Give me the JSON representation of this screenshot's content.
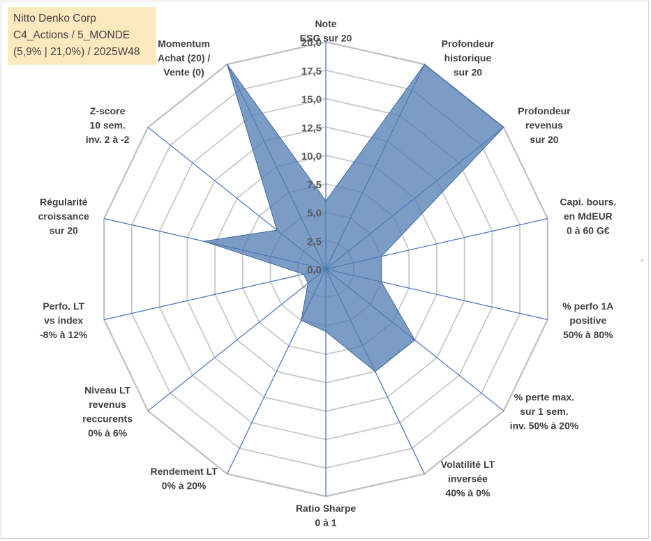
{
  "title_box": {
    "line1": "Nitto Denko Corp",
    "line2": "C4_Actions / 5_MONDE",
    "line3": "(5,9% | 21,0%) / 2025W48"
  },
  "colors": {
    "fill": "#4f7bb0",
    "fill_opacity": "0.75",
    "axis": "#4472c4",
    "grid": "#c8c8c8",
    "title_bg": "#fde9c0"
  },
  "chart_data": {
    "type": "radar",
    "title": "",
    "r_range": [
      0,
      20
    ],
    "r_step": 2.5,
    "tick_labels": [
      "0,0",
      "2,5",
      "5,0",
      "7,5",
      "10,0",
      "12,5",
      "15,0",
      "17,5",
      "20,0"
    ],
    "categories": [
      [
        "Note",
        "ESG sur 20"
      ],
      [
        "Profondeur",
        "historique",
        "sur 20"
      ],
      [
        "Profondeur",
        "revenus",
        "sur 20"
      ],
      [
        "Capi. bours.",
        "en MdEUR",
        "0 à 60 G€"
      ],
      [
        "% perfo 1A",
        "positive",
        "50% à 80%"
      ],
      [
        "% perte max.",
        "sur 1 sem.",
        "inv. 50% à 20%"
      ],
      [
        "Volatilité LT",
        "inversée",
        "40% à 0%"
      ],
      [
        "Ratio Sharpe",
        "0 à 1"
      ],
      [
        "Rendement LT",
        "0% à 20%"
      ],
      [
        "Niveau LT",
        "revenus",
        "reccurents",
        "0% à 6%"
      ],
      [
        "Perfo. LT",
        "vs index",
        "-8% à 12%"
      ],
      [
        "Régularité",
        "croissance",
        "sur 20"
      ],
      [
        "Z-score",
        "10 sem.",
        "inv. 2 à -2"
      ],
      [
        "Momentum",
        "Achat (20) /",
        "Vente (0)"
      ]
    ],
    "series": [
      {
        "name": "Nitto Denko Corp",
        "values": [
          6.0,
          20.0,
          20.0,
          5.0,
          5.0,
          10.0,
          10.0,
          5.5,
          5.0,
          2.0,
          2.0,
          11.0,
          5.5,
          20.0
        ]
      }
    ],
    "grid": true,
    "legend": "none"
  }
}
